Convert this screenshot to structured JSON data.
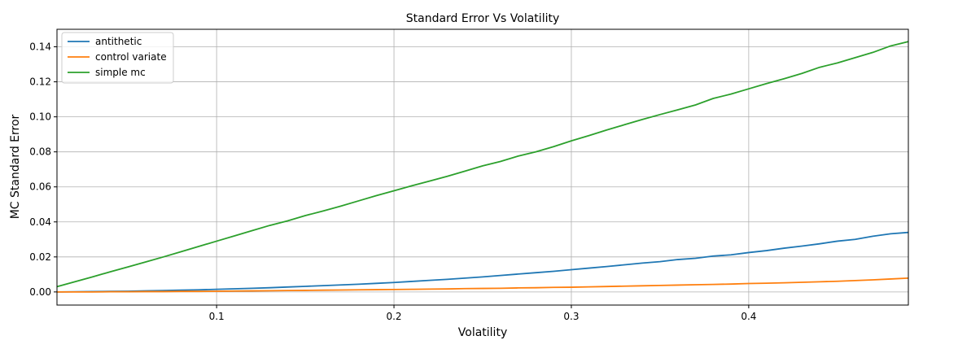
{
  "chart_data": {
    "type": "line",
    "title": "Standard Error Vs Volatility",
    "xlabel": "Volatility",
    "ylabel": "MC Standard Error",
    "xlim": [
      0.01,
      0.49
    ],
    "ylim": [
      -0.0075,
      0.15
    ],
    "xticks": [
      0.1,
      0.2,
      0.3,
      0.4
    ],
    "xtick_labels": [
      "0.1",
      "0.2",
      "0.3",
      "0.4"
    ],
    "yticks": [
      0.0,
      0.02,
      0.04,
      0.06,
      0.08,
      0.1,
      0.12,
      0.14
    ],
    "ytick_labels": [
      "0.00",
      "0.02",
      "0.04",
      "0.06",
      "0.08",
      "0.10",
      "0.12",
      "0.14"
    ],
    "grid": true,
    "legend_position": "top-left",
    "x": [
      0.01,
      0.02,
      0.03,
      0.04,
      0.05,
      0.06,
      0.07,
      0.08,
      0.09,
      0.1,
      0.11,
      0.12,
      0.13,
      0.14,
      0.15,
      0.16,
      0.17,
      0.18,
      0.19,
      0.2,
      0.21,
      0.22,
      0.23,
      0.24,
      0.25,
      0.26,
      0.27,
      0.28,
      0.29,
      0.3,
      0.31,
      0.32,
      0.33,
      0.34,
      0.35,
      0.36,
      0.37,
      0.38,
      0.39,
      0.4,
      0.41,
      0.42,
      0.43,
      0.44,
      0.45,
      0.46,
      0.47,
      0.48,
      0.49
    ],
    "series": [
      {
        "name": "antithetic",
        "color": "#1f77b4",
        "values": [
          0.0,
          0.0001,
          0.0002,
          0.0003,
          0.0004,
          0.0006,
          0.0008,
          0.001,
          0.0012,
          0.0015,
          0.0018,
          0.0021,
          0.0024,
          0.0028,
          0.0032,
          0.0036,
          0.004,
          0.0044,
          0.0049,
          0.0054,
          0.006,
          0.0066,
          0.0072,
          0.0079,
          0.0086,
          0.0094,
          0.0102,
          0.011,
          0.0118,
          0.0127,
          0.0136,
          0.0145,
          0.0155,
          0.0165,
          0.0173,
          0.0185,
          0.0192,
          0.0205,
          0.0212,
          0.0225,
          0.0236,
          0.025,
          0.0262,
          0.0275,
          0.029,
          0.03,
          0.0318,
          0.0332,
          0.034
        ]
      },
      {
        "name": "control variate",
        "color": "#ff7f0e",
        "values": [
          0.0,
          0.0,
          0.0,
          0.0001,
          0.0001,
          0.0002,
          0.0002,
          0.0003,
          0.0003,
          0.0004,
          0.0005,
          0.0006,
          0.0007,
          0.0008,
          0.0009,
          0.001,
          0.0011,
          0.0012,
          0.0013,
          0.0014,
          0.0015,
          0.0016,
          0.0017,
          0.0019,
          0.002,
          0.0021,
          0.0023,
          0.0024,
          0.0026,
          0.0027,
          0.0029,
          0.0031,
          0.0033,
          0.0035,
          0.0037,
          0.0039,
          0.0041,
          0.0043,
          0.0045,
          0.0048,
          0.005,
          0.0052,
          0.0055,
          0.0058,
          0.0061,
          0.0065,
          0.0069,
          0.0074,
          0.0079
        ]
      },
      {
        "name": "simple mc",
        "color": "#2ca02c",
        "values": [
          0.003,
          0.0058,
          0.0086,
          0.0115,
          0.0143,
          0.0171,
          0.02,
          0.023,
          0.026,
          0.029,
          0.032,
          0.035,
          0.038,
          0.0406,
          0.0436,
          0.0462,
          0.049,
          0.052,
          0.055,
          0.0578,
          0.0606,
          0.0633,
          0.066,
          0.069,
          0.072,
          0.0745,
          0.0776,
          0.08,
          0.083,
          0.0863,
          0.0893,
          0.0925,
          0.0955,
          0.0985,
          0.1013,
          0.104,
          0.1068,
          0.1105,
          0.113,
          0.116,
          0.119,
          0.1218,
          0.1248,
          0.1283,
          0.1308,
          0.1338,
          0.1368,
          0.1405,
          0.143
        ]
      }
    ]
  }
}
